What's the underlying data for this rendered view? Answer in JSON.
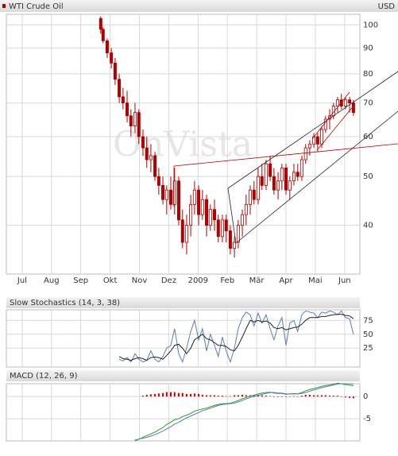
{
  "chart_data": [
    {
      "type": "candlestick",
      "title": "WTI Crude Oil",
      "unit": "USD",
      "watermark": "OnVista",
      "color": "#b00000",
      "x": [
        2.68,
        2.76,
        2.9,
        3.04,
        3.17,
        3.31,
        3.44,
        3.58,
        3.71,
        3.85,
        3.98,
        4.12,
        4.25,
        4.39,
        4.53,
        4.66,
        4.8,
        4.93,
        5.07,
        5.2,
        5.34,
        5.47,
        5.61,
        5.75,
        5.88,
        6.02,
        6.15,
        6.29,
        6.42,
        6.56,
        6.69,
        6.83,
        6.96,
        7.1,
        7.24,
        7.37,
        7.51,
        7.64,
        7.78,
        7.91,
        8.05,
        8.18,
        8.32,
        8.46,
        8.59,
        8.73,
        8.86,
        9.0,
        9.13,
        9.27,
        9.4,
        9.54,
        9.67,
        9.81,
        9.95,
        10.08,
        10.22,
        10.35,
        10.49,
        10.62,
        10.76,
        10.89,
        11.03,
        11.17,
        11.3
      ],
      "open": [
        103,
        98,
        93,
        88,
        84,
        78,
        72,
        70,
        66,
        63,
        67,
        60,
        57,
        54,
        55,
        50,
        48,
        45,
        47,
        44,
        49,
        41,
        37,
        40,
        44,
        47,
        42,
        45,
        40,
        43,
        41,
        38,
        41,
        39,
        36,
        37,
        40,
        42,
        44,
        47,
        45,
        50,
        48,
        53,
        50,
        47,
        49,
        52,
        47,
        49,
        51,
        50,
        54,
        57,
        58,
        60,
        58,
        62,
        65,
        66,
        69,
        71,
        69,
        71,
        70
      ],
      "high": [
        104,
        99,
        94,
        90,
        86,
        80,
        75,
        74,
        68,
        70,
        68,
        62,
        60,
        58,
        56,
        52,
        50,
        48,
        50,
        52,
        50,
        43,
        42,
        46,
        49,
        48,
        47,
        46,
        44,
        45,
        42,
        42,
        42,
        40,
        38,
        41,
        43,
        46,
        48,
        49,
        52,
        53,
        54,
        55,
        52,
        51,
        53,
        53,
        50,
        53,
        53,
        55,
        58,
        59,
        61,
        61,
        63,
        66,
        68,
        70,
        72,
        73,
        72,
        72,
        71
      ],
      "low": [
        96,
        92,
        86,
        82,
        76,
        70,
        68,
        64,
        60,
        61,
        58,
        55,
        52,
        51,
        49,
        46,
        44,
        42,
        43,
        42,
        40,
        36,
        35,
        38,
        42,
        40,
        41,
        38,
        39,
        39,
        37,
        37,
        37,
        35,
        34.5,
        36,
        38,
        40,
        42,
        44,
        44,
        47,
        47,
        49,
        46,
        45,
        47,
        46,
        45,
        48,
        49,
        49,
        53,
        55,
        57,
        56,
        57,
        61,
        62,
        65,
        67,
        68,
        68,
        67,
        66
      ],
      "close": [
        98,
        93,
        88,
        84,
        78,
        72,
        70,
        66,
        63,
        67,
        60,
        57,
        54,
        55,
        50,
        48,
        45,
        47,
        44,
        49,
        41,
        37,
        40,
        44,
        47,
        42,
        45,
        40,
        43,
        41,
        38,
        41,
        39,
        36,
        37,
        40,
        42,
        44,
        47,
        45,
        50,
        48,
        53,
        50,
        47,
        49,
        52,
        47,
        49,
        51,
        50,
        54,
        57,
        58,
        60,
        58,
        62,
        65,
        66,
        69,
        71,
        69,
        71,
        70,
        67
      ],
      "xlim": [
        -0.54,
        11.52
      ],
      "xticks": [
        {
          "value": 0,
          "label": "Jul"
        },
        {
          "value": 1,
          "label": "Aug"
        },
        {
          "value": 2,
          "label": "Sep"
        },
        {
          "value": 3,
          "label": "Okt"
        },
        {
          "value": 4,
          "label": "Nov"
        },
        {
          "value": 5,
          "label": "Dez"
        },
        {
          "value": 6,
          "label": "2009"
        },
        {
          "value": 7,
          "label": "Feb"
        },
        {
          "value": 8,
          "label": "Mär"
        },
        {
          "value": 9,
          "label": "Apr"
        },
        {
          "value": 10,
          "label": "Mai"
        },
        {
          "value": 11,
          "label": "Jun"
        }
      ],
      "ylim": [
        32,
        105
      ],
      "yticks": [
        40,
        50,
        60,
        70,
        80,
        90,
        100
      ],
      "log_scale": true,
      "grid": true
    },
    {
      "type": "line",
      "title": "Slow Stochastics (14, 3, 38)",
      "x": [
        2.68,
        2.76,
        2.9,
        3.04,
        3.17,
        3.31,
        3.44,
        3.58,
        3.71,
        3.85,
        3.98,
        4.12,
        4.25,
        4.39,
        4.53,
        4.66,
        4.8,
        4.93,
        5.07,
        5.2,
        5.34,
        5.47,
        5.61,
        5.75,
        5.88,
        6.02,
        6.15,
        6.29,
        6.42,
        6.56,
        6.69,
        6.83,
        6.96,
        7.1,
        7.24,
        7.37,
        7.51,
        7.64,
        7.78,
        7.91,
        8.05,
        8.18,
        8.32,
        8.46,
        8.59,
        8.73,
        8.86,
        9.0,
        9.13,
        9.27,
        9.4,
        9.54,
        9.67,
        9.81,
        9.95,
        10.08,
        10.22,
        10.35,
        10.49,
        10.62,
        10.76,
        10.89,
        11.03,
        11.17,
        11.3
      ],
      "series": [
        {
          "color": "#5a7fb0",
          "values": [
            null,
            null,
            null,
            null,
            null,
            5,
            2,
            8,
            0,
            15,
            5,
            0,
            3,
            20,
            5,
            0,
            10,
            25,
            30,
            60,
            15,
            0,
            25,
            55,
            75,
            40,
            60,
            20,
            50,
            30,
            10,
            45,
            20,
            0,
            25,
            60,
            80,
            90,
            85,
            65,
            88,
            70,
            85,
            60,
            40,
            65,
            80,
            30,
            70,
            75,
            55,
            85,
            92,
            90,
            88,
            80,
            90,
            88,
            92,
            90,
            85,
            92,
            80,
            78,
            50
          ]
        },
        {
          "color": "#222222",
          "values": [
            null,
            null,
            null,
            null,
            null,
            10,
            6,
            5,
            3,
            6,
            8,
            6,
            3,
            8,
            9,
            8,
            5,
            12,
            20,
            30,
            32,
            25,
            15,
            25,
            40,
            45,
            50,
            42,
            40,
            35,
            30,
            30,
            28,
            22,
            20,
            30,
            45,
            60,
            75,
            72,
            75,
            72,
            74,
            70,
            62,
            60,
            62,
            58,
            60,
            62,
            63,
            68,
            75,
            80,
            80,
            80,
            82,
            82,
            84,
            85,
            86,
            86,
            84,
            83,
            78
          ]
        }
      ],
      "xlim": [
        -0.54,
        11.52
      ],
      "ylim": [
        -9,
        94
      ],
      "yticks": [
        25,
        50,
        75
      ],
      "grid": true
    },
    {
      "type": "line",
      "title": "MACD (12, 26, 9)",
      "x": [
        2.68,
        2.76,
        2.9,
        3.04,
        3.17,
        3.31,
        3.44,
        3.58,
        3.71,
        3.85,
        3.98,
        4.12,
        4.25,
        4.39,
        4.53,
        4.66,
        4.8,
        4.93,
        5.07,
        5.2,
        5.34,
        5.47,
        5.61,
        5.75,
        5.88,
        6.02,
        6.15,
        6.29,
        6.42,
        6.56,
        6.69,
        6.83,
        6.96,
        7.1,
        7.24,
        7.37,
        7.51,
        7.64,
        7.78,
        7.91,
        8.05,
        8.18,
        8.32,
        8.46,
        8.59,
        8.73,
        8.86,
        9.0,
        9.13,
        9.27,
        9.4,
        9.54,
        9.67,
        9.81,
        9.95,
        10.08,
        10.22,
        10.35,
        10.49,
        10.62,
        10.76,
        10.89,
        11.03,
        11.17,
        11.3
      ],
      "series": [
        {
          "type": "bar",
          "color": "#d00000",
          "values": [
            null,
            null,
            null,
            null,
            null,
            null,
            null,
            null,
            null,
            null,
            null,
            0.2,
            0.4,
            0.5,
            0.6,
            0.7,
            0.8,
            1.0,
            1.0,
            1.0,
            0.8,
            0.8,
            0.6,
            0.6,
            0.7,
            0.6,
            0.4,
            0.3,
            0.3,
            0.3,
            0.2,
            0.2,
            0.1,
            0.1,
            0.3,
            0.3,
            0.4,
            0.3,
            0.3,
            0.3,
            0.3,
            0.3,
            0.2,
            0.1,
            -0.1,
            -0.1,
            -0.1,
            -0.1,
            0,
            0.1,
            0,
            0.2,
            0.4,
            0.4,
            0.3,
            0.3,
            0.3,
            0.3,
            0.2,
            0.2,
            0.2,
            0,
            -0.2,
            -0.3,
            -0.4
          ]
        },
        {
          "type": "line",
          "color": "#2a9a2a",
          "values": [
            null,
            null,
            null,
            null,
            null,
            null,
            null,
            null,
            null,
            -10,
            -9.6,
            -9.2,
            -8.8,
            -8.4,
            -8.0,
            -7.5,
            -7.0,
            -6.3,
            -5.8,
            -5.2,
            -5.0,
            -4.5,
            -4.2,
            -3.8,
            -3.3,
            -3.0,
            -2.8,
            -2.6,
            -2.3,
            -2.0,
            -1.8,
            -1.6,
            -1.6,
            -1.5,
            -1.2,
            -0.9,
            -0.5,
            -0.2,
            0.1,
            0.3,
            0.6,
            0.8,
            0.9,
            1.0,
            0.8,
            0.7,
            0.7,
            0.5,
            0.6,
            0.7,
            0.6,
            0.9,
            1.3,
            1.6,
            1.8,
            2.0,
            2.3,
            2.5,
            2.6,
            2.8,
            3.0,
            2.9,
            2.7,
            2.6,
            2.4
          ]
        },
        {
          "type": "line",
          "color": "#5a7fb0",
          "values": [
            null,
            null,
            null,
            null,
            null,
            null,
            null,
            null,
            null,
            -9.8,
            -9.6,
            -9.4,
            -9.2,
            -8.9,
            -8.6,
            -8.2,
            -7.8,
            -7.3,
            -6.8,
            -6.2,
            -5.8,
            -5.3,
            -4.8,
            -4.4,
            -4.0,
            -3.6,
            -3.2,
            -2.9,
            -2.6,
            -2.3,
            -2.0,
            -1.8,
            -1.7,
            -1.6,
            -1.5,
            -1.2,
            -0.9,
            -0.5,
            -0.2,
            0.0,
            0.3,
            0.5,
            0.7,
            0.9,
            0.9,
            0.8,
            0.8,
            0.6,
            0.6,
            0.6,
            0.6,
            0.7,
            0.9,
            1.2,
            1.5,
            1.7,
            2.0,
            2.2,
            2.4,
            2.6,
            2.8,
            2.9,
            2.9,
            2.9,
            2.8
          ]
        }
      ],
      "xlim": [
        -0.54,
        11.52
      ],
      "ylim": [
        -10,
        2.9
      ],
      "yticks": [
        -5,
        0
      ],
      "grid": true
    }
  ]
}
